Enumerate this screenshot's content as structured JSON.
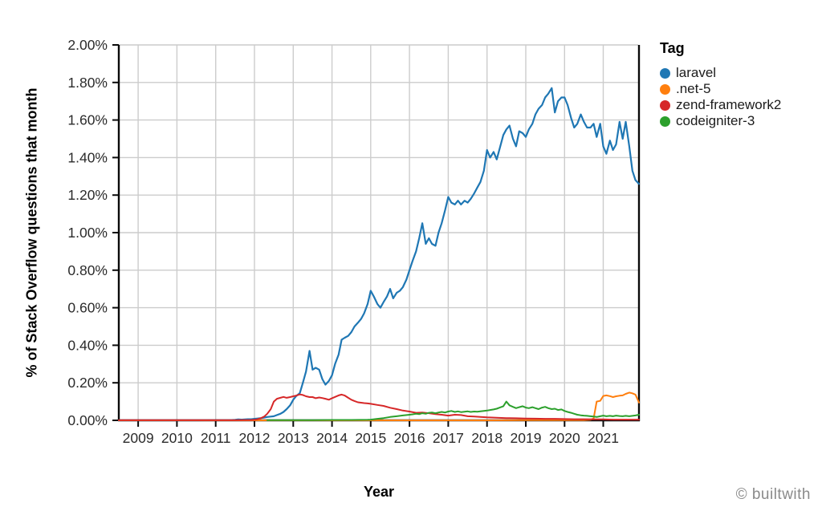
{
  "footer": {
    "credit": "© builtwith"
  },
  "chart_data": {
    "type": "line",
    "title": "",
    "xlabel": "Year",
    "ylabel": "% of Stack Overflow questions that month",
    "legend_title": "Tag",
    "legend_position": "right",
    "grid": true,
    "xlim": [
      2008.5,
      2021.9
    ],
    "ylim": [
      0,
      2.0
    ],
    "x_ticks": [
      {
        "value": 2009,
        "label": "2009"
      },
      {
        "value": 2010,
        "label": "2010"
      },
      {
        "value": 2011,
        "label": "2011"
      },
      {
        "value": 2012,
        "label": "2012"
      },
      {
        "value": 2013,
        "label": "2013"
      },
      {
        "value": 2014,
        "label": "2014"
      },
      {
        "value": 2015,
        "label": "2015"
      },
      {
        "value": 2016,
        "label": "2016"
      },
      {
        "value": 2017,
        "label": "2017"
      },
      {
        "value": 2018,
        "label": "2018"
      },
      {
        "value": 2019,
        "label": "2019"
      },
      {
        "value": 2020,
        "label": "2020"
      },
      {
        "value": 2021,
        "label": "2021"
      }
    ],
    "y_ticks": [
      {
        "value": 0.0,
        "label": "0.00%"
      },
      {
        "value": 0.2,
        "label": "0.20%"
      },
      {
        "value": 0.4,
        "label": "0.40%"
      },
      {
        "value": 0.6,
        "label": "0.60%"
      },
      {
        "value": 0.8,
        "label": "0.80%"
      },
      {
        "value": 1.0,
        "label": "1.00%"
      },
      {
        "value": 1.2,
        "label": "1.20%"
      },
      {
        "value": 1.4,
        "label": "1.40%"
      },
      {
        "value": 1.6,
        "label": "1.60%"
      },
      {
        "value": 1.8,
        "label": "1.80%"
      },
      {
        "value": 2.0,
        "label": "2.00%"
      }
    ],
    "y_unit": "percent of Stack Overflow questions that month",
    "series": [
      {
        "name": "laravel",
        "color": "#1f77b4",
        "width": 2.2,
        "x": [
          2008.5,
          2009,
          2009.5,
          2010,
          2010.5,
          2011,
          2011.33,
          2011.5,
          2011.58,
          2011.67,
          2011.75,
          2011.83,
          2011.92,
          2012,
          2012.08,
          2012.17,
          2012.25,
          2012.33,
          2012.42,
          2012.5,
          2012.58,
          2012.67,
          2012.75,
          2012.83,
          2012.92,
          2013,
          2013.08,
          2013.17,
          2013.25,
          2013.33,
          2013.42,
          2013.5,
          2013.58,
          2013.67,
          2013.75,
          2013.83,
          2013.92,
          2014,
          2014.08,
          2014.17,
          2014.25,
          2014.33,
          2014.42,
          2014.5,
          2014.58,
          2014.67,
          2014.75,
          2014.83,
          2014.92,
          2015,
          2015.08,
          2015.17,
          2015.25,
          2015.33,
          2015.42,
          2015.5,
          2015.58,
          2015.67,
          2015.75,
          2015.83,
          2015.92,
          2016,
          2016.08,
          2016.17,
          2016.25,
          2016.33,
          2016.42,
          2016.5,
          2016.58,
          2016.67,
          2016.75,
          2016.83,
          2016.92,
          2017,
          2017.08,
          2017.17,
          2017.25,
          2017.33,
          2017.42,
          2017.5,
          2017.58,
          2017.67,
          2017.75,
          2017.83,
          2017.92,
          2018,
          2018.08,
          2018.17,
          2018.25,
          2018.33,
          2018.42,
          2018.5,
          2018.58,
          2018.67,
          2018.75,
          2018.83,
          2018.92,
          2019,
          2019.08,
          2019.17,
          2019.25,
          2019.33,
          2019.42,
          2019.5,
          2019.58,
          2019.67,
          2019.75,
          2019.83,
          2019.92,
          2020,
          2020.08,
          2020.17,
          2020.25,
          2020.33,
          2020.42,
          2020.5,
          2020.58,
          2020.67,
          2020.75,
          2020.83,
          2020.92,
          2021,
          2021.08,
          2021.17,
          2021.25,
          2021.33,
          2021.42,
          2021.5,
          2021.58,
          2021.67,
          2021.75,
          2021.83,
          2021.92
        ],
        "y": [
          0,
          0,
          0,
          0,
          0,
          0.001,
          0.001,
          0.003,
          0.005,
          0.004,
          0.005,
          0.006,
          0.006,
          0.008,
          0.01,
          0.012,
          0.015,
          0.018,
          0.02,
          0.022,
          0.028,
          0.035,
          0.045,
          0.06,
          0.08,
          0.11,
          0.13,
          0.145,
          0.2,
          0.26,
          0.37,
          0.27,
          0.28,
          0.27,
          0.22,
          0.19,
          0.21,
          0.24,
          0.3,
          0.35,
          0.43,
          0.44,
          0.45,
          0.47,
          0.5,
          0.52,
          0.54,
          0.57,
          0.62,
          0.69,
          0.66,
          0.62,
          0.6,
          0.63,
          0.66,
          0.7,
          0.65,
          0.68,
          0.69,
          0.71,
          0.75,
          0.8,
          0.85,
          0.9,
          0.97,
          1.05,
          0.94,
          0.97,
          0.94,
          0.93,
          1.0,
          1.05,
          1.12,
          1.19,
          1.16,
          1.15,
          1.17,
          1.15,
          1.17,
          1.16,
          1.18,
          1.21,
          1.24,
          1.27,
          1.33,
          1.44,
          1.4,
          1.43,
          1.39,
          1.45,
          1.52,
          1.55,
          1.57,
          1.5,
          1.46,
          1.54,
          1.53,
          1.51,
          1.55,
          1.58,
          1.63,
          1.66,
          1.68,
          1.72,
          1.74,
          1.77,
          1.64,
          1.7,
          1.72,
          1.72,
          1.68,
          1.61,
          1.56,
          1.58,
          1.63,
          1.59,
          1.56,
          1.56,
          1.58,
          1.51,
          1.58,
          1.46,
          1.42,
          1.49,
          1.44,
          1.47,
          1.59,
          1.5,
          1.59,
          1.46,
          1.33,
          1.28,
          1.26
        ]
      },
      {
        "name": ".net-5",
        "color": "#ff7f0e",
        "width": 2,
        "x": [
          2008.5,
          2010,
          2012,
          2014,
          2016,
          2018,
          2019,
          2020,
          2020.25,
          2020.5,
          2020.58,
          2020.67,
          2020.75,
          2020.83,
          2020.92,
          2021,
          2021.08,
          2021.17,
          2021.25,
          2021.33,
          2021.42,
          2021.5,
          2021.58,
          2021.67,
          2021.75,
          2021.83,
          2021.92
        ],
        "y": [
          0,
          0,
          0,
          0,
          0,
          0,
          0.001,
          0.001,
          0.001,
          0.001,
          0.002,
          0.003,
          0.01,
          0.1,
          0.104,
          0.13,
          0.133,
          0.129,
          0.124,
          0.128,
          0.131,
          0.133,
          0.141,
          0.148,
          0.144,
          0.137,
          0.095
        ]
      },
      {
        "name": "zend-framework2",
        "color": "#d62728",
        "width": 2,
        "x": [
          2008.5,
          2009,
          2009.5,
          2010,
          2010.5,
          2011,
          2011.5,
          2011.92,
          2012,
          2012.08,
          2012.17,
          2012.25,
          2012.33,
          2012.42,
          2012.5,
          2012.58,
          2012.67,
          2012.75,
          2012.83,
          2012.92,
          2013,
          2013.08,
          2013.17,
          2013.25,
          2013.33,
          2013.42,
          2013.5,
          2013.58,
          2013.67,
          2013.75,
          2013.83,
          2013.92,
          2014,
          2014.08,
          2014.17,
          2014.25,
          2014.33,
          2014.42,
          2014.5,
          2014.58,
          2014.67,
          2014.75,
          2014.83,
          2014.92,
          2015,
          2015.17,
          2015.33,
          2015.5,
          2015.67,
          2015.83,
          2016,
          2016.17,
          2016.33,
          2016.5,
          2016.67,
          2016.83,
          2017,
          2017.17,
          2017.33,
          2017.5,
          2017.67,
          2017.83,
          2018,
          2018.25,
          2018.5,
          2018.75,
          2019,
          2019.25,
          2019.5,
          2019.75,
          2020,
          2020.25,
          2020.5,
          2020.75,
          2021,
          2021.25,
          2021.5,
          2021.75,
          2021.92
        ],
        "y": [
          0.001,
          0.001,
          0.001,
          0.001,
          0.001,
          0.001,
          0.001,
          0.002,
          0.003,
          0.006,
          0.012,
          0.02,
          0.035,
          0.06,
          0.1,
          0.115,
          0.12,
          0.125,
          0.12,
          0.124,
          0.128,
          0.132,
          0.138,
          0.135,
          0.128,
          0.124,
          0.124,
          0.118,
          0.122,
          0.119,
          0.115,
          0.11,
          0.118,
          0.125,
          0.133,
          0.137,
          0.132,
          0.12,
          0.11,
          0.103,
          0.096,
          0.094,
          0.092,
          0.09,
          0.088,
          0.082,
          0.077,
          0.067,
          0.06,
          0.052,
          0.047,
          0.04,
          0.042,
          0.038,
          0.033,
          0.03,
          0.025,
          0.03,
          0.028,
          0.022,
          0.02,
          0.018,
          0.016,
          0.014,
          0.012,
          0.011,
          0.01,
          0.009,
          0.008,
          0.008,
          0.007,
          0.006,
          0.006,
          0.005,
          0.005,
          0.004,
          0.004,
          0.004,
          0.004
        ]
      },
      {
        "name": "codeigniter-3",
        "color": "#2ca02c",
        "width": 2,
        "x": [
          2012.33,
          2012.75,
          2013,
          2013.5,
          2014,
          2014.5,
          2014.92,
          2015,
          2015.17,
          2015.33,
          2015.5,
          2015.67,
          2015.83,
          2016,
          2016.08,
          2016.17,
          2016.25,
          2016.33,
          2016.42,
          2016.5,
          2016.58,
          2016.67,
          2016.75,
          2016.83,
          2016.92,
          2017,
          2017.08,
          2017.17,
          2017.25,
          2017.33,
          2017.42,
          2017.5,
          2017.58,
          2017.67,
          2017.75,
          2017.83,
          2017.92,
          2018,
          2018.08,
          2018.17,
          2018.25,
          2018.33,
          2018.42,
          2018.5,
          2018.58,
          2018.67,
          2018.75,
          2018.83,
          2018.92,
          2019,
          2019.08,
          2019.17,
          2019.25,
          2019.33,
          2019.42,
          2019.5,
          2019.58,
          2019.67,
          2019.75,
          2019.83,
          2019.92,
          2020,
          2020.08,
          2020.17,
          2020.25,
          2020.33,
          2020.42,
          2020.5,
          2020.58,
          2020.67,
          2020.75,
          2020.83,
          2020.92,
          2021,
          2021.08,
          2021.17,
          2021.25,
          2021.33,
          2021.42,
          2021.5,
          2021.58,
          2021.67,
          2021.75,
          2021.83,
          2021.92
        ],
        "y": [
          0.001,
          0.001,
          0.001,
          0.001,
          0.002,
          0.002,
          0.003,
          0.004,
          0.008,
          0.012,
          0.018,
          0.022,
          0.026,
          0.03,
          0.032,
          0.035,
          0.033,
          0.038,
          0.035,
          0.04,
          0.042,
          0.038,
          0.042,
          0.045,
          0.042,
          0.047,
          0.05,
          0.045,
          0.048,
          0.044,
          0.046,
          0.048,
          0.045,
          0.047,
          0.046,
          0.048,
          0.05,
          0.052,
          0.055,
          0.058,
          0.062,
          0.068,
          0.075,
          0.1,
          0.08,
          0.072,
          0.065,
          0.07,
          0.075,
          0.068,
          0.065,
          0.07,
          0.065,
          0.06,
          0.068,
          0.072,
          0.065,
          0.06,
          0.062,
          0.055,
          0.058,
          0.05,
          0.045,
          0.04,
          0.035,
          0.03,
          0.027,
          0.025,
          0.024,
          0.022,
          0.02,
          0.018,
          0.022,
          0.025,
          0.022,
          0.024,
          0.022,
          0.025,
          0.023,
          0.022,
          0.024,
          0.022,
          0.024,
          0.026,
          0.03
        ]
      }
    ]
  }
}
